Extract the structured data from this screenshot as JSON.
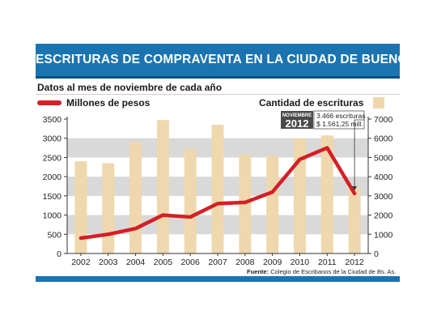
{
  "header": {
    "title": "ESCRITURAS DE COMPRAVENTA EN LA CIUDAD DE BUENOS AIRES",
    "subtitle": "Datos al mes de noviembre de cada año"
  },
  "colors": {
    "title_bar": "#1b74b0",
    "line": "#d41f26",
    "bars": "#efd8ae",
    "band": "#d9d9d9"
  },
  "chart_data": {
    "type": "bar",
    "categories": [
      "2002",
      "2003",
      "2004",
      "2005",
      "2006",
      "2007",
      "2008",
      "2009",
      "2010",
      "2011",
      "2012"
    ],
    "series": [
      {
        "name": "Cantidad de escrituras",
        "type": "bar",
        "axis": "right",
        "values": [
          4800,
          4700,
          5800,
          6950,
          5450,
          6700,
          5150,
          5100,
          6000,
          6150,
          3466
        ]
      },
      {
        "name": "Millones de pesos",
        "type": "line",
        "axis": "left",
        "values": [
          400,
          500,
          650,
          1000,
          950,
          1300,
          1330,
          1600,
          2450,
          2750,
          1561.25
        ]
      }
    ],
    "y_left": {
      "min": 0,
      "max": 3500,
      "ticks": [
        0,
        500,
        1000,
        1500,
        2000,
        2500,
        3000,
        3500
      ]
    },
    "y_right": {
      "min": 0,
      "max": 7000,
      "ticks": [
        0,
        1000,
        2000,
        3000,
        4000,
        5000,
        6000,
        7000
      ]
    },
    "grid_bands": true,
    "legend": {
      "line_label": "Millones de pesos",
      "bar_label": "Cantidad de escrituras",
      "placement": "top"
    },
    "annotation": {
      "category": "2012",
      "month": "NOVIEMBRE",
      "year": "2012",
      "line1": "3.466 escrituras",
      "line2": "$ 1.561,25 mill."
    },
    "source_label": "Fuente:",
    "source": "Colegio de Escribanos de la Ciudad de Bs. As."
  }
}
